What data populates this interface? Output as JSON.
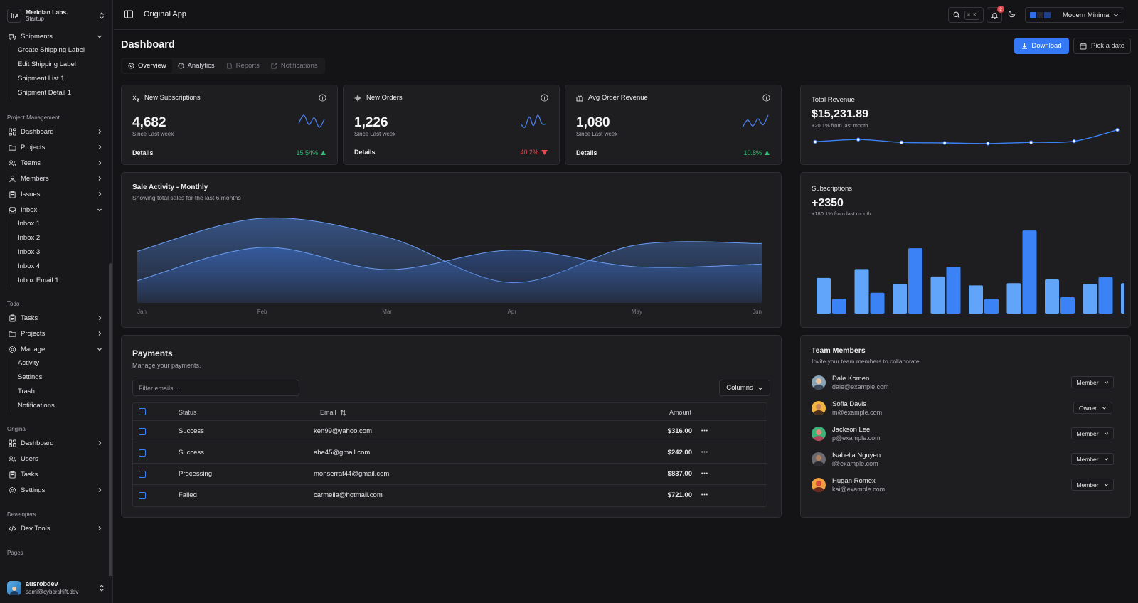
{
  "sidebar": {
    "team": {
      "name": "Meridian Labs.",
      "plan": "Startup"
    },
    "shipments": {
      "label": "Shipments",
      "subs": [
        "Create Shipping Label",
        "Edit Shipping Label",
        "Shipment List 1",
        "Shipment Detail 1"
      ]
    },
    "groups": {
      "project_management": "Project Management",
      "todo": "Todo",
      "original": "Original",
      "developers": "Developers",
      "pages": "Pages"
    },
    "pm_items": [
      "Dashboard",
      "Projects",
      "Teams",
      "Members",
      "Issues"
    ],
    "inbox": {
      "label": "Inbox",
      "subs": [
        "Inbox 1",
        "Inbox 2",
        "Inbox 3",
        "Inbox 4",
        "Inbox Email 1"
      ]
    },
    "todo_items": [
      "Tasks",
      "Projects"
    ],
    "manage": {
      "label": "Manage",
      "subs": [
        "Activity",
        "Settings",
        "Trash",
        "Notifications"
      ]
    },
    "original_items": [
      "Dashboard",
      "Users",
      "Tasks",
      "Settings"
    ],
    "dev_tools": "Dev Tools",
    "user": {
      "name": "ausrobdev",
      "email": "sami@cybershift.dev"
    }
  },
  "topbar": {
    "title": "Original App",
    "search_kbd": "⌘ K",
    "notif_count": "2",
    "theme_label": "Modern Minimal",
    "theme_swatches": [
      "#2f6fe0",
      "#2a2a30",
      "#1f3f8a",
      "#141416"
    ]
  },
  "header": {
    "title": "Dashboard",
    "download": "Download",
    "date": "Pick a date"
  },
  "tabs": [
    "Overview",
    "Analytics",
    "Reports",
    "Notifications"
  ],
  "stats": [
    {
      "title": "New Subscriptions",
      "value": "4,682",
      "sub": "Since Last week",
      "details": "Details",
      "pct": "15.54%",
      "dir": "up",
      "spark": [
        5,
        11,
        4,
        9,
        2,
        8
      ]
    },
    {
      "title": "New Orders",
      "value": "1,226",
      "sub": "Since Last week",
      "details": "Details",
      "pct": "40.2%",
      "dir": "down",
      "spark": [
        5,
        3,
        9,
        4,
        10,
        5,
        5
      ]
    },
    {
      "title": "Avg Order Revenue",
      "value": "1,080",
      "sub": "Since Last week",
      "details": "Details",
      "pct": "10.8%",
      "dir": "up",
      "spark": [
        2,
        8,
        3,
        9,
        4,
        12
      ]
    }
  ],
  "revenue": {
    "title": "Total Revenue",
    "value": "$15,231.89",
    "sub": "+20.1% from last month"
  },
  "sales": {
    "title": "Sale Activity - Monthly",
    "sub": "Showing total sales for the last 6 months"
  },
  "subscriptions": {
    "title": "Subscriptions",
    "value": "+2350",
    "sub": "+180.1% from last month"
  },
  "payments": {
    "title": "Payments",
    "sub": "Manage your payments.",
    "filter_placeholder": "Filter emails...",
    "columns_label": "Columns",
    "headers": {
      "status": "Status",
      "email": "Email",
      "amount": "Amount"
    },
    "rows": [
      {
        "status": "Success",
        "email": "ken99@yahoo.com",
        "amount": "$316.00"
      },
      {
        "status": "Success",
        "email": "abe45@gmail.com",
        "amount": "$242.00"
      },
      {
        "status": "Processing",
        "email": "monserrat44@gmail.com",
        "amount": "$837.00"
      },
      {
        "status": "Failed",
        "email": "carmella@hotmail.com",
        "amount": "$721.00"
      }
    ]
  },
  "team": {
    "title": "Team Members",
    "sub": "Invite your team members to collaborate.",
    "members": [
      {
        "name": "Dale Komen",
        "email": "dale@example.com",
        "role": "Member"
      },
      {
        "name": "Sofia Davis",
        "email": "m@example.com",
        "role": "Owner"
      },
      {
        "name": "Jackson Lee",
        "email": "p@example.com",
        "role": "Member"
      },
      {
        "name": "Isabella Nguyen",
        "email": "i@example.com",
        "role": "Member"
      },
      {
        "name": "Hugan Romex",
        "email": "kai@example.com",
        "role": "Member"
      }
    ]
  },
  "chart_data": [
    {
      "type": "line",
      "title": "Total Revenue",
      "x": [
        1,
        2,
        3,
        4,
        5,
        6,
        7,
        8
      ],
      "values": [
        32,
        36,
        31,
        30,
        29,
        31,
        33,
        53
      ],
      "color": "#3b82f6"
    },
    {
      "type": "area",
      "title": "Sale Activity - Monthly",
      "categories": [
        "Jan",
        "Feb",
        "Mar",
        "Apr",
        "May",
        "Jun"
      ],
      "series": [
        {
          "values": [
            186,
            305,
            237,
            73,
            209,
            214
          ]
        },
        {
          "values": [
            80,
            200,
            120,
            190,
            130,
            140
          ]
        }
      ],
      "color": "#4a7fd6"
    },
    {
      "type": "bar",
      "title": "Subscriptions",
      "series": [
        {
          "values": [
            48,
            60,
            40,
            50,
            38,
            41,
            46,
            40,
            41
          ]
        },
        {
          "values": [
            20,
            28,
            88,
            63,
            20,
            112,
            22,
            49,
            0
          ]
        }
      ],
      "colors": [
        "#60a5fa",
        "#3b82f6"
      ]
    }
  ]
}
